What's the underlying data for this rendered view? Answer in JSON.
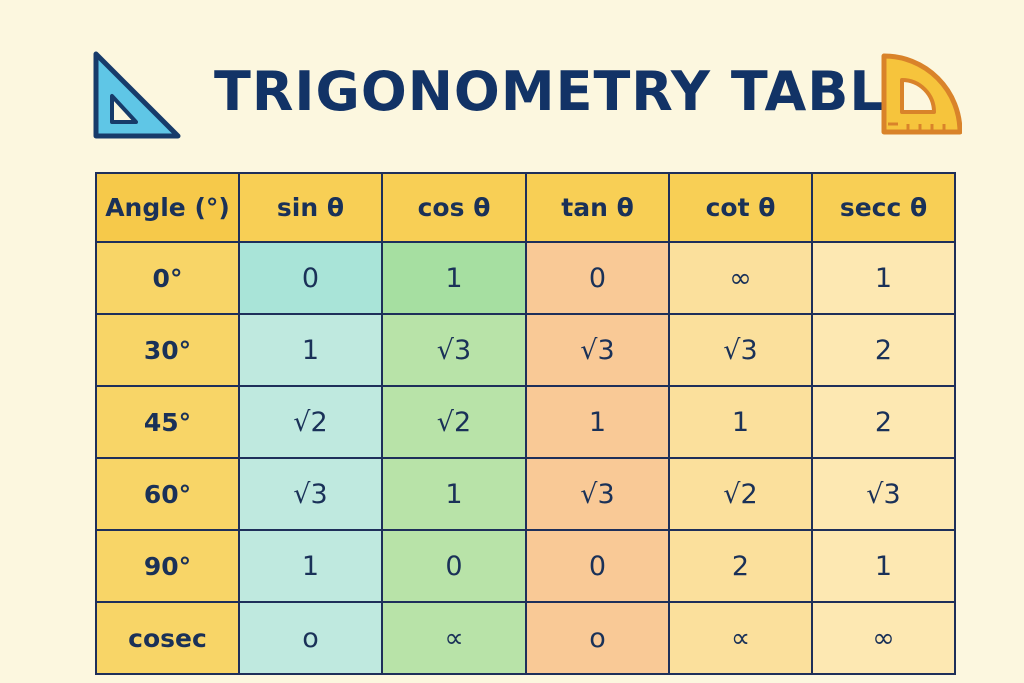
{
  "title": "TRIGONOMETRY TABLE",
  "icons": {
    "left": "set-square-icon",
    "right": "protractor-icon"
  },
  "colors": {
    "title": "#123366",
    "header": "#f8cf55",
    "angle_column": "#f8d567",
    "sin_column": "#bfe9df",
    "cos_column": "#b8e3a8",
    "tan_column": "#f9c996",
    "cot_column": "#fbe09c",
    "sec_column": "#fde8b2",
    "border": "#1e2f5a"
  },
  "table": {
    "headers": [
      "Angle (°)",
      "sin θ",
      "cos θ",
      "tan θ",
      "cot θ",
      "secc θ"
    ],
    "rows": [
      [
        "0°",
        "0",
        "1",
        "0",
        "∞",
        "1"
      ],
      [
        "30°",
        "1",
        "√3",
        "√3",
        "√3",
        "2"
      ],
      [
        "45°",
        "√2",
        "√2",
        "1",
        "1",
        "2"
      ],
      [
        "60°",
        "√3",
        "1",
        "√3",
        "√2",
        "√3"
      ],
      [
        "90°",
        "1",
        "0",
        "0",
        "2",
        "1"
      ],
      [
        "cosec",
        "o",
        "∝",
        "o",
        "∝",
        "∞"
      ]
    ]
  }
}
